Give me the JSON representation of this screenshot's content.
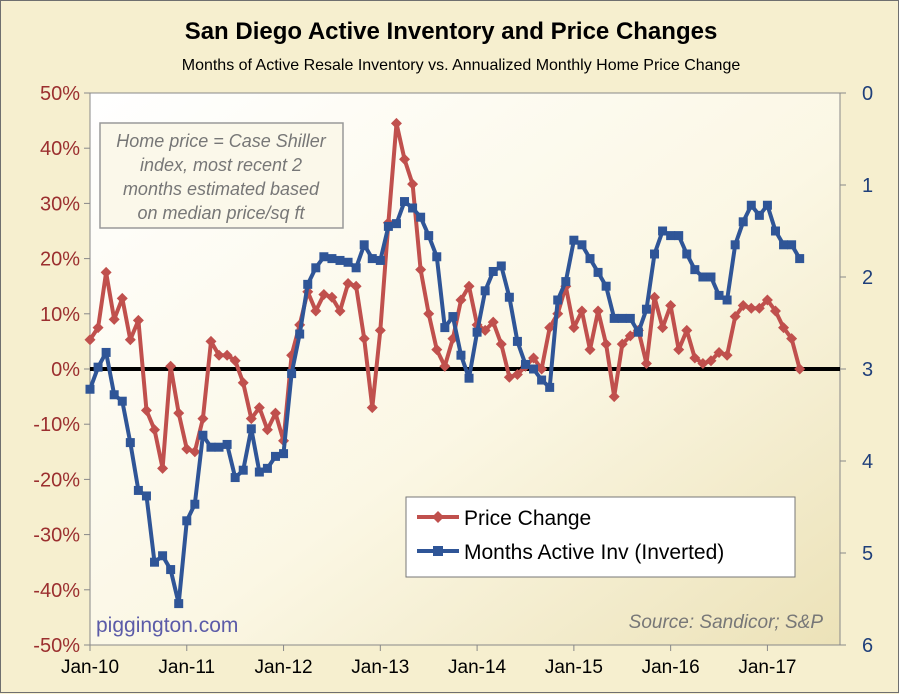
{
  "chart_data": {
    "type": "line",
    "title": "San Diego Active Inventory and Price Changes",
    "subtitle": "Months of Active Resale Inventory vs. Annualized Monthly Home Price Change",
    "x_tick_labels": [
      "Jan-10",
      "Jan-11",
      "Jan-12",
      "Jan-13",
      "Jan-14",
      "Jan-15",
      "Jan-16",
      "Jan-17"
    ],
    "left_axis": {
      "ylim": [
        -50,
        50
      ],
      "ticks": [
        "-50%",
        "-40%",
        "-30%",
        "-20%",
        "-10%",
        "0%",
        "10%",
        "20%",
        "30%",
        "40%",
        "50%"
      ],
      "color": "#9b2f2f"
    },
    "right_axis": {
      "ylim": [
        0,
        6
      ],
      "inverted": true,
      "ticks": [
        "0",
        "1",
        "2",
        "3",
        "4",
        "5",
        "6"
      ],
      "color": "#1f3f7a"
    },
    "grid": false,
    "legend_position": "bottom-right",
    "series": [
      {
        "name": "Price Change",
        "axis": "left",
        "color": "#c0504d",
        "marker": "diamond",
        "values": [
          5.3,
          7.5,
          17.5,
          9.0,
          12.8,
          5.3,
          8.8,
          -7.5,
          -11.0,
          -18.0,
          0.5,
          -8.0,
          -14.5,
          -15.0,
          -9.0,
          5.0,
          2.5,
          2.5,
          1.5,
          -2.5,
          -9.0,
          -7.0,
          -11.0,
          -8.0,
          -13.0,
          2.5,
          8.0,
          14.0,
          10.5,
          13.5,
          13.0,
          10.5,
          15.5,
          15.0,
          5.5,
          -7.0,
          7.0,
          26.5,
          44.5,
          38.0,
          33.5,
          18.0,
          10.0,
          3.5,
          0.5,
          5.5,
          12.5,
          15.0,
          8.0,
          7.0,
          8.5,
          4.5,
          -1.5,
          -1.0,
          0.5,
          2.0,
          0.0,
          7.5,
          10.0,
          15.0,
          7.5,
          10.5,
          3.5,
          10.5,
          4.5,
          -5.0,
          4.5,
          6.0,
          7.0,
          1.0,
          13.0,
          7.5,
          11.5,
          3.5,
          7.0,
          2.0,
          1.0,
          1.5,
          3.0,
          2.5,
          9.5,
          11.5,
          11.0,
          11.0,
          12.5,
          10.5,
          7.5,
          5.5,
          0.0
        ]
      },
      {
        "name": "Months Active Inv (Inverted)",
        "axis": "right",
        "color": "#2f5597",
        "marker": "square",
        "values": [
          3.22,
          2.98,
          2.82,
          3.28,
          3.35,
          3.8,
          4.32,
          4.38,
          5.1,
          5.03,
          5.18,
          5.55,
          4.65,
          4.47,
          3.72,
          3.85,
          3.85,
          3.82,
          4.18,
          4.1,
          3.65,
          4.12,
          4.08,
          3.95,
          3.92,
          3.05,
          2.62,
          2.08,
          1.9,
          1.78,
          1.8,
          1.82,
          1.84,
          1.9,
          1.65,
          1.8,
          1.82,
          1.45,
          1.42,
          1.18,
          1.25,
          1.35,
          1.55,
          1.78,
          2.55,
          2.43,
          2.85,
          3.1,
          2.6,
          2.15,
          1.94,
          1.88,
          2.22,
          2.7,
          2.95,
          3.0,
          3.12,
          3.2,
          2.25,
          2.05,
          1.6,
          1.65,
          1.8,
          1.95,
          2.1,
          2.45,
          2.45,
          2.45,
          2.6,
          2.35,
          1.75,
          1.5,
          1.55,
          1.55,
          1.75,
          1.92,
          2.0,
          2.0,
          2.2,
          2.25,
          1.65,
          1.4,
          1.22,
          1.33,
          1.22,
          1.5,
          1.65,
          1.65,
          1.8
        ]
      }
    ]
  },
  "annotation": {
    "lines": [
      "Home price = Case Shiller",
      "index, most recent 2",
      "months estimated based",
      "on median price/sq ft"
    ]
  },
  "watermark": "piggington.com",
  "source": "Source: Sandicor; S&P",
  "colors": {
    "background": "#f6efcf",
    "price_line": "#c0504d",
    "inventory_line": "#2f5597",
    "zero_line": "#000000"
  }
}
